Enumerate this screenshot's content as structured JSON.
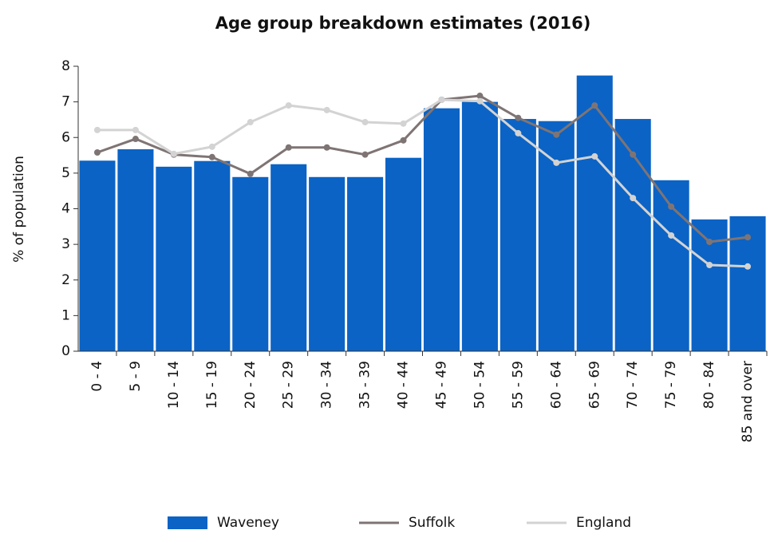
{
  "chart_data": {
    "type": "bar_line",
    "title": "Age group breakdown estimates (2016)",
    "y_label": "% of population",
    "categories": [
      "0 - 4",
      "5 - 9",
      "10 - 14",
      "15 - 19",
      "20 - 24",
      "25 - 29",
      "30 - 34",
      "35 - 39",
      "40 - 44",
      "45 - 49",
      "50 - 54",
      "55 - 59",
      "60 - 64",
      "65 - 69",
      "70 - 74",
      "75 - 79",
      "80 - 84",
      "85 and over"
    ],
    "series": [
      {
        "name": "Waveney",
        "kind": "bar",
        "color": "#0b63c5",
        "values": [
          5.35,
          5.67,
          5.18,
          5.34,
          4.89,
          5.25,
          4.89,
          4.89,
          5.43,
          6.82,
          7.0,
          6.52,
          6.46,
          7.74,
          6.52,
          4.8,
          3.7,
          3.79
        ]
      },
      {
        "name": "Suffolk",
        "kind": "line",
        "color": "#7f7474",
        "values": [
          5.58,
          5.96,
          5.52,
          5.45,
          4.98,
          5.72,
          5.72,
          5.52,
          5.92,
          7.06,
          7.17,
          6.55,
          6.08,
          6.9,
          5.52,
          4.06,
          3.07,
          3.2
        ]
      },
      {
        "name": "England",
        "kind": "line",
        "color": "#d3d3d3",
        "values": [
          6.21,
          6.21,
          5.54,
          5.74,
          6.43,
          6.9,
          6.77,
          6.43,
          6.39,
          7.06,
          7.02,
          6.12,
          5.29,
          5.47,
          4.3,
          3.25,
          2.42,
          2.38
        ]
      }
    ],
    "ylim": [
      0,
      8
    ],
    "yticks": [
      0,
      1,
      2,
      3,
      4,
      5,
      6,
      7,
      8
    ]
  }
}
